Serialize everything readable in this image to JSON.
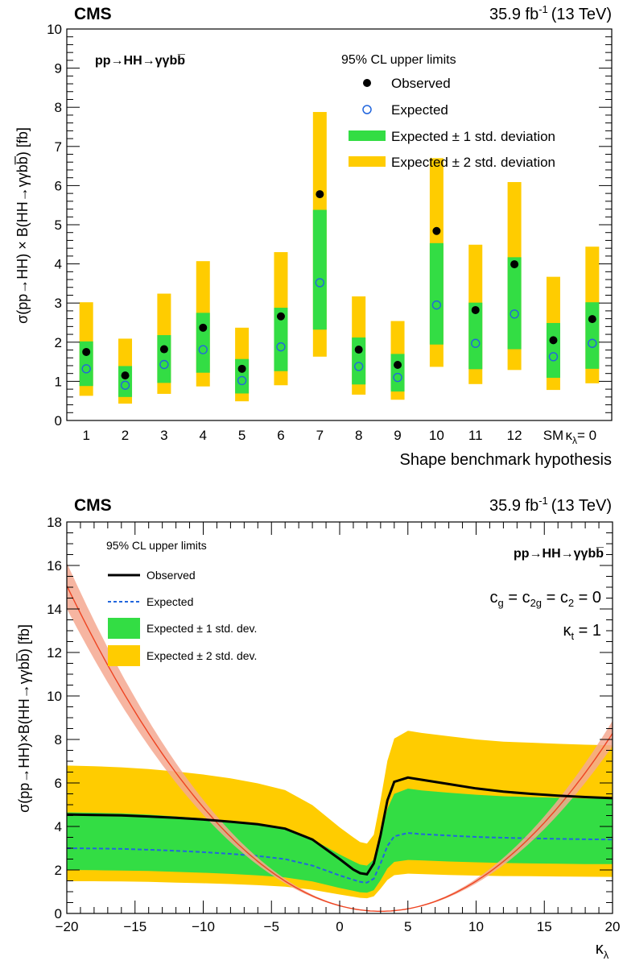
{
  "chart_data": [
    {
      "type": "bar",
      "experiment": "CMS",
      "lumi": "35.9 fb",
      "lumi_sup": "-1",
      "energy": "(13 TeV)",
      "process": "pp→HH→γγbb̅",
      "ylabel": "σ(pp→HH) × B(HH→γγbb̅) [fb]",
      "xlabel": "Shape benchmark hypothesis",
      "ylim": [
        0,
        10
      ],
      "yticks": [
        0,
        1,
        2,
        3,
        4,
        5,
        6,
        7,
        8,
        9,
        10
      ],
      "legend": {
        "title": "95% CL upper limits",
        "observed": "Observed",
        "expected": "Expected",
        "band1": "Expected ± 1 std. deviation",
        "band2": "Expected ± 2 std. deviation"
      },
      "categories": [
        "1",
        "2",
        "3",
        "4",
        "5",
        "6",
        "7",
        "8",
        "9",
        "10",
        "11",
        "12",
        "SM",
        "κλ= 0"
      ],
      "observed": [
        1.75,
        1.15,
        1.82,
        2.37,
        1.32,
        2.66,
        5.78,
        1.81,
        1.42,
        4.84,
        2.82,
        3.99,
        2.05,
        2.59
      ],
      "expected": [
        1.32,
        0.9,
        1.43,
        1.81,
        1.02,
        1.88,
        3.52,
        1.38,
        1.1,
        2.95,
        1.97,
        2.72,
        1.63,
        1.97
      ],
      "band1_low": [
        0.88,
        0.6,
        0.96,
        1.22,
        0.69,
        1.26,
        2.32,
        0.92,
        0.74,
        1.94,
        1.31,
        1.82,
        1.09,
        1.32
      ],
      "band1_high": [
        2.02,
        1.39,
        2.18,
        2.75,
        1.57,
        2.88,
        5.38,
        2.12,
        1.7,
        4.53,
        3.01,
        4.17,
        2.49,
        3.02
      ],
      "band2_low": [
        0.63,
        0.43,
        0.68,
        0.87,
        0.49,
        0.9,
        1.63,
        0.66,
        0.53,
        1.37,
        0.93,
        1.29,
        0.78,
        0.95
      ],
      "band2_high": [
        3.02,
        2.09,
        3.24,
        4.07,
        2.37,
        4.3,
        7.88,
        3.17,
        2.54,
        6.7,
        4.49,
        6.09,
        3.67,
        4.44
      ],
      "colors": {
        "band1": "#33dd44",
        "band2": "#ffcc00",
        "observed": "#000000",
        "expected": "#2266dd"
      }
    },
    {
      "type": "line",
      "experiment": "CMS",
      "lumi": "35.9 fb",
      "lumi_sup": "-1",
      "energy": "(13 TeV)",
      "process": "pp→HH→γγbb̅",
      "couplings": "c_g = c_2g = c_2 = 0",
      "kt": "κt = 1",
      "ylabel": "σ(pp→HH)×B(HH→γγbb̅) [fb]",
      "xlabel": "κλ",
      "xlim": [
        -20,
        20
      ],
      "ylim": [
        0,
        18
      ],
      "xticks": [
        -20,
        -15,
        -10,
        -5,
        0,
        5,
        10,
        15,
        20
      ],
      "yticks": [
        0,
        2,
        4,
        6,
        8,
        10,
        12,
        14,
        16,
        18
      ],
      "legend": {
        "title": "95% CL upper limits",
        "observed": "Observed",
        "expected": "Expected",
        "band1": "Expected ± 1 std. dev.",
        "band2": "Expected ± 2 std. dev."
      },
      "x": [
        -20,
        -18,
        -16,
        -14,
        -12,
        -10,
        -8,
        -6,
        -4,
        -2,
        0,
        1,
        1.5,
        2,
        2.5,
        3,
        3.5,
        4,
        5,
        6,
        8,
        10,
        12,
        14,
        16,
        18,
        20
      ],
      "observed": [
        4.55,
        4.53,
        4.51,
        4.46,
        4.4,
        4.32,
        4.22,
        4.1,
        3.9,
        3.4,
        2.5,
        2.02,
        1.85,
        1.8,
        2.3,
        3.6,
        5.2,
        6.05,
        6.25,
        6.15,
        5.95,
        5.75,
        5.6,
        5.5,
        5.42,
        5.35,
        5.3
      ],
      "expected": [
        3.0,
        2.99,
        2.97,
        2.93,
        2.88,
        2.82,
        2.74,
        2.64,
        2.5,
        2.2,
        1.75,
        1.55,
        1.45,
        1.42,
        1.6,
        2.3,
        3.1,
        3.55,
        3.7,
        3.65,
        3.58,
        3.52,
        3.48,
        3.45,
        3.43,
        3.41,
        3.4
      ],
      "band1_low": [
        2.0,
        1.99,
        1.97,
        1.95,
        1.91,
        1.87,
        1.82,
        1.75,
        1.66,
        1.47,
        1.17,
        1.04,
        0.97,
        0.95,
        1.07,
        1.53,
        2.07,
        2.37,
        2.46,
        2.44,
        2.39,
        2.35,
        2.32,
        2.3,
        2.29,
        2.27,
        2.27
      ],
      "band1_high": [
        4.65,
        4.63,
        4.6,
        4.54,
        4.46,
        4.37,
        4.25,
        4.09,
        3.88,
        3.41,
        2.71,
        2.4,
        2.25,
        2.2,
        2.48,
        3.57,
        4.81,
        5.5,
        5.74,
        5.66,
        5.55,
        5.46,
        5.39,
        5.35,
        5.32,
        5.29,
        5.27
      ],
      "band2_low": [
        1.48,
        1.48,
        1.47,
        1.45,
        1.42,
        1.39,
        1.35,
        1.3,
        1.23,
        1.09,
        0.87,
        0.77,
        0.72,
        0.7,
        0.79,
        1.14,
        1.54,
        1.76,
        1.83,
        1.81,
        1.77,
        1.74,
        1.72,
        1.71,
        1.7,
        1.69,
        1.68
      ],
      "band2_high": [
        6.8,
        6.77,
        6.72,
        6.64,
        6.53,
        6.39,
        6.21,
        5.98,
        5.67,
        4.98,
        3.96,
        3.5,
        3.28,
        3.21,
        3.62,
        5.21,
        7.02,
        8.04,
        8.4,
        8.3,
        8.15,
        8.0,
        7.9,
        7.85,
        7.8,
        7.76,
        7.73
      ],
      "theory": {
        "a": 0.0283,
        "xmin": 3.0,
        "c": 0.1,
        "rel_unc": 0.07
      },
      "colors": {
        "band1": "#33dd44",
        "band2": "#ffcc00",
        "observed": "#000000",
        "expected": "#2266dd",
        "theory": "#ee4422",
        "theory_band": "#f4a890"
      }
    }
  ]
}
